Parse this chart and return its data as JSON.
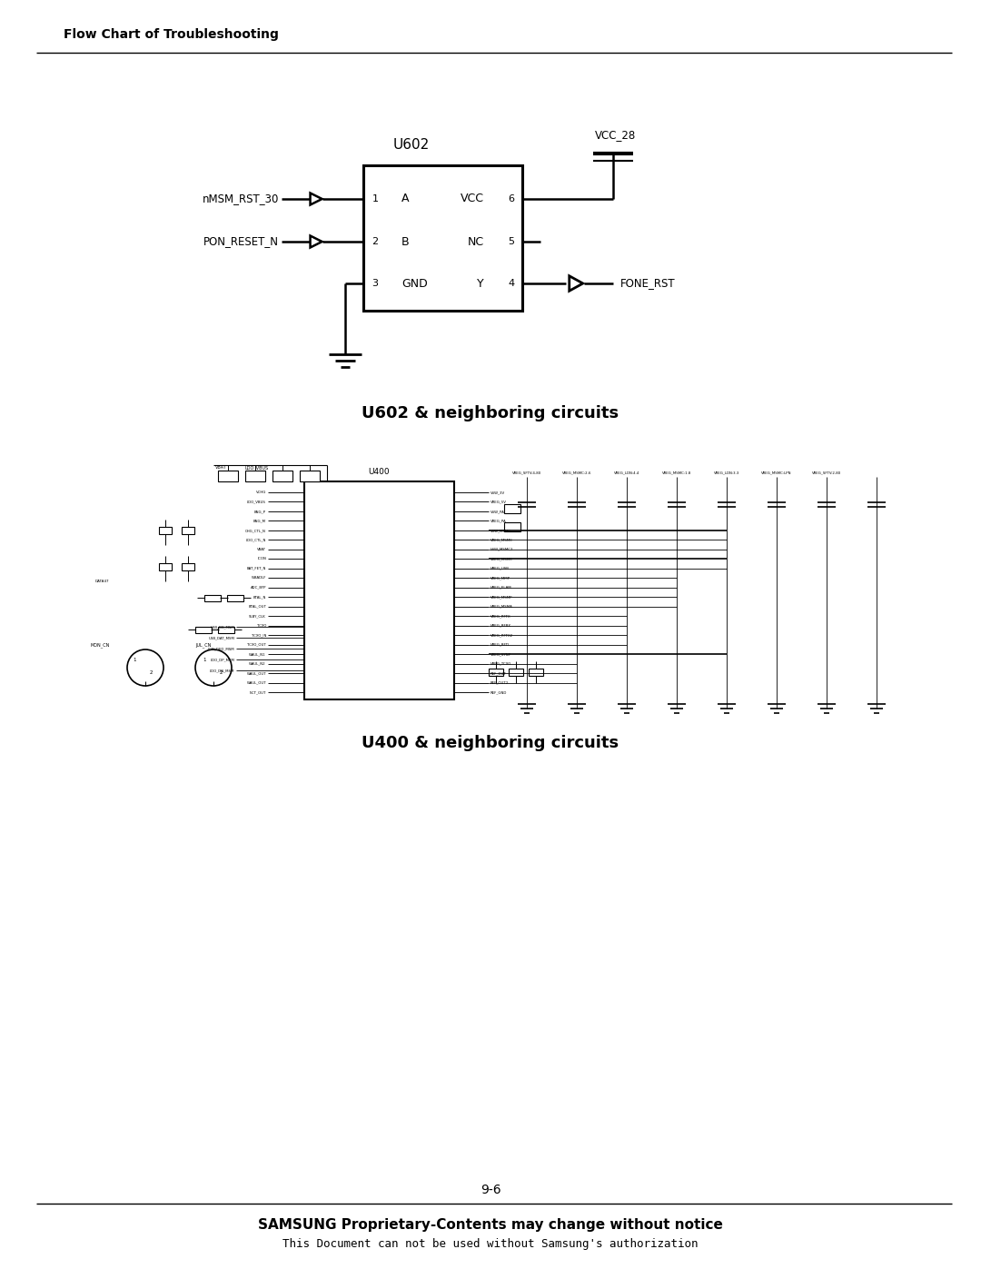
{
  "page_title": "Flow Chart of Troubleshooting",
  "page_number": "9-6",
  "footer_line1": "SAMSUNG Proprietary-Contents may change without notice",
  "footer_line2": "This Document can not be used without Samsung's authorization",
  "u602_label": "U602",
  "u602_vcc_label": "VCC_28",
  "u602_signal_left1": "nMSM_RST_30",
  "u602_signal_left2": "PON_RESET_N",
  "u602_signal_right": "FONE_RST",
  "caption1": "U602 & neighboring circuits",
  "caption2": "U400 & neighboring circuits",
  "bg_color": "#ffffff",
  "text_color": "#000000",
  "line_color": "#000000"
}
